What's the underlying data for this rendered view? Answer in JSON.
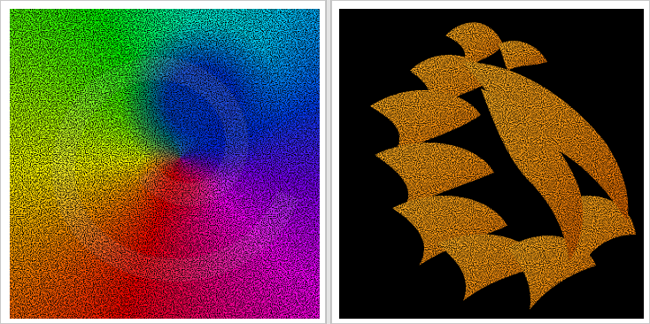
{
  "images": [
    {
      "name": "rainbow-spiral-noise",
      "background": "#1a1a1a",
      "palette": [
        "#ff0000",
        "#ff7f00",
        "#ffff00",
        "#00ff00",
        "#00ffff",
        "#0000ff",
        "#ff00ff"
      ]
    },
    {
      "name": "orange-fractal-flame",
      "background": "#000000",
      "palette": [
        "#ff8c00",
        "#ffa500",
        "#ffcc33",
        "#e06000"
      ]
    }
  ]
}
